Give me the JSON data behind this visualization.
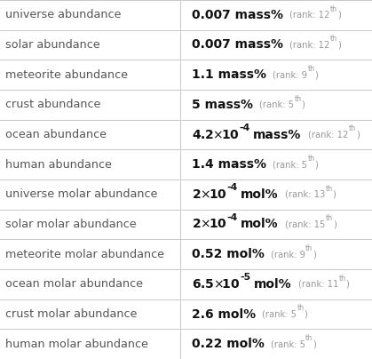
{
  "rows": [
    {
      "label": "universe abundance",
      "value_main": "0.007",
      "unit": "mass%",
      "rank": "12",
      "rank_suffix": "th",
      "sci_notation": false,
      "exponent": null,
      "multiplier": null
    },
    {
      "label": "solar abundance",
      "value_main": "0.007",
      "unit": "mass%",
      "rank": "12",
      "rank_suffix": "th",
      "sci_notation": false,
      "exponent": null,
      "multiplier": null
    },
    {
      "label": "meteorite abundance",
      "value_main": "1.1",
      "unit": "mass%",
      "rank": "9",
      "rank_suffix": "th",
      "sci_notation": false,
      "exponent": null,
      "multiplier": null
    },
    {
      "label": "crust abundance",
      "value_main": "5",
      "unit": "mass%",
      "rank": "5",
      "rank_suffix": "th",
      "sci_notation": false,
      "exponent": null,
      "multiplier": null
    },
    {
      "label": "ocean abundance",
      "value_main": "4.2",
      "unit": "mass%",
      "rank": "12",
      "rank_suffix": "th",
      "sci_notation": true,
      "exponent": "-4",
      "multiplier": "4.2"
    },
    {
      "label": "human abundance",
      "value_main": "1.4",
      "unit": "mass%",
      "rank": "5",
      "rank_suffix": "th",
      "sci_notation": false,
      "exponent": null,
      "multiplier": null
    },
    {
      "label": "universe molar abundance",
      "value_main": "2",
      "unit": "mol%",
      "rank": "13",
      "rank_suffix": "th",
      "sci_notation": true,
      "exponent": "-4",
      "multiplier": "2"
    },
    {
      "label": "solar molar abundance",
      "value_main": "2",
      "unit": "mol%",
      "rank": "15",
      "rank_suffix": "th",
      "sci_notation": true,
      "exponent": "-4",
      "multiplier": "2"
    },
    {
      "label": "meteorite molar abundance",
      "value_main": "0.52",
      "unit": "mol%",
      "rank": "9",
      "rank_suffix": "th",
      "sci_notation": false,
      "exponent": null,
      "multiplier": null
    },
    {
      "label": "ocean molar abundance",
      "value_main": "6.5",
      "unit": "mol%",
      "rank": "11",
      "rank_suffix": "th",
      "sci_notation": true,
      "exponent": "-5",
      "multiplier": "6.5"
    },
    {
      "label": "crust molar abundance",
      "value_main": "2.6",
      "unit": "mol%",
      "rank": "5",
      "rank_suffix": "th",
      "sci_notation": false,
      "exponent": null,
      "multiplier": null
    },
    {
      "label": "human molar abundance",
      "value_main": "0.22",
      "unit": "mol%",
      "rank": "5",
      "rank_suffix": "th",
      "sci_notation": false,
      "exponent": null,
      "multiplier": null
    }
  ],
  "bg_color": "#ffffff",
  "line_color": "#c8c8c8",
  "label_color": "#555555",
  "value_color": "#111111",
  "rank_color": "#999999",
  "col_split": 0.485,
  "figsize": [
    4.19,
    4.04
  ],
  "dpi": 100,
  "label_fontsize": 9.2,
  "value_fontsize": 10.0,
  "rank_fontsize": 7.2,
  "exp_fontsize": 7.8
}
